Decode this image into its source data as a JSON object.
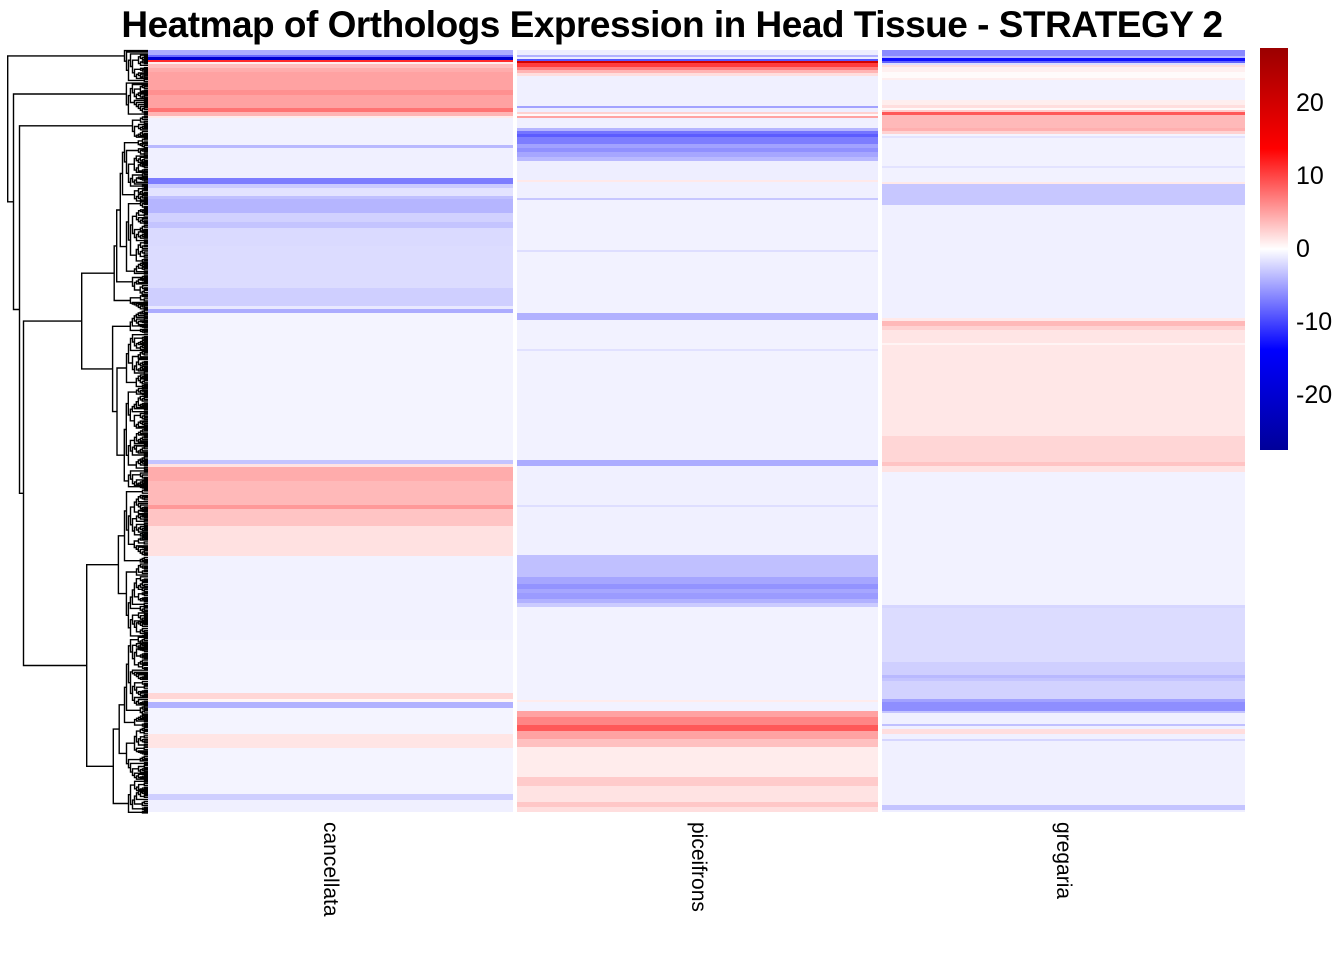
{
  "title": "Heatmap of Orthologs Expression in Head Tissue - STRATEGY 2",
  "chart_data": {
    "type": "heatmap",
    "title": "Heatmap of Orthologs Expression in Head Tissue - STRATEGY 2",
    "columns": [
      "cancellata",
      "piceifrons",
      "gregaria"
    ],
    "row_dendrogram": true,
    "legend_position": "right",
    "value_domain": [
      -27.5,
      27.5
    ],
    "colorbar_ticks": [
      20,
      10,
      0,
      -10,
      -20
    ],
    "colormap_stops": [
      "#9A0000",
      "#FF0000",
      "#FFFFFF",
      "#0000FF",
      "#00009A"
    ],
    "bands_format": "[row_band_height_px, expression_value]",
    "bands": {
      "cancellata": [
        [
          5,
          -4.5
        ],
        [
          2,
          -8
        ],
        [
          3,
          -20
        ],
        [
          2,
          11.5
        ],
        [
          2,
          1
        ],
        [
          4,
          3.5
        ],
        [
          4,
          4.5
        ],
        [
          18,
          5
        ],
        [
          5,
          6
        ],
        [
          13,
          5
        ],
        [
          4,
          7.5
        ],
        [
          4,
          4
        ],
        [
          2,
          1
        ],
        [
          27,
          -0.7
        ],
        [
          3,
          -3.8
        ],
        [
          30,
          -0.8
        ],
        [
          6,
          -7
        ],
        [
          4,
          -2.8
        ],
        [
          8,
          -1.5
        ],
        [
          3,
          -3.4
        ],
        [
          14,
          -4
        ],
        [
          9,
          -2.5
        ],
        [
          6,
          -3.2
        ],
        [
          18,
          -2
        ],
        [
          42,
          -1.9
        ],
        [
          18,
          -2.6
        ],
        [
          3,
          -1.2
        ],
        [
          4,
          -4.5
        ],
        [
          147,
          -0.6
        ],
        [
          4,
          -3.2
        ],
        [
          3,
          1.5
        ],
        [
          14,
          4.5
        ],
        [
          24,
          3.8
        ],
        [
          4,
          5.5
        ],
        [
          17,
          3.2
        ],
        [
          30,
          1.6
        ],
        [
          84,
          -0.7
        ],
        [
          53,
          -0.6
        ],
        [
          6,
          2.2
        ],
        [
          3,
          0.5
        ],
        [
          6,
          -4.2
        ],
        [
          26,
          -0.6
        ],
        [
          14,
          1.4
        ],
        [
          46,
          -0.6
        ],
        [
          6,
          -2.6
        ],
        [
          13,
          -0.8
        ]
      ],
      "piceifrons": [
        [
          5,
          -0.9
        ],
        [
          2,
          -4.2
        ],
        [
          2,
          -0.9
        ],
        [
          2,
          -9
        ],
        [
          2,
          20
        ],
        [
          4,
          10.5
        ],
        [
          3,
          7
        ],
        [
          3,
          4
        ],
        [
          3,
          1.8
        ],
        [
          30,
          -0.8
        ],
        [
          2,
          -5
        ],
        [
          4,
          -0.9
        ],
        [
          2,
          2.5
        ],
        [
          2,
          0.3
        ],
        [
          2,
          5
        ],
        [
          10,
          -0.8
        ],
        [
          3,
          -4
        ],
        [
          3,
          -7.5
        ],
        [
          3,
          -8.8
        ],
        [
          7,
          -7
        ],
        [
          4,
          -5
        ],
        [
          4,
          -6
        ],
        [
          5,
          -4.8
        ],
        [
          4,
          -3.8
        ],
        [
          19,
          -0.9
        ],
        [
          2,
          1.2
        ],
        [
          16,
          -0.8
        ],
        [
          2,
          -3
        ],
        [
          50,
          -0.7
        ],
        [
          2,
          -1.8
        ],
        [
          61,
          -0.7
        ],
        [
          7,
          -4.2
        ],
        [
          29,
          -0.7
        ],
        [
          2,
          -1.6
        ],
        [
          109,
          -0.7
        ],
        [
          6,
          -4.5
        ],
        [
          39,
          -0.8
        ],
        [
          2,
          -1.8
        ],
        [
          48,
          -0.8
        ],
        [
          22,
          -3.4
        ],
        [
          7,
          -4.8
        ],
        [
          6,
          -5.8
        ],
        [
          4,
          -4.8
        ],
        [
          6,
          -5.4
        ],
        [
          4,
          -4.2
        ],
        [
          4,
          -2.8
        ],
        [
          93,
          -0.7
        ],
        [
          2,
          1
        ],
        [
          9,
          -0.7
        ],
        [
          6,
          5
        ],
        [
          8,
          6.6
        ],
        [
          6,
          9
        ],
        [
          8,
          5
        ],
        [
          8,
          3.4
        ],
        [
          30,
          1
        ],
        [
          9,
          2.8
        ],
        [
          16,
          1.5
        ],
        [
          5,
          3
        ],
        [
          5,
          1.8
        ]
      ],
      "gregaria": [
        [
          6,
          -6.3
        ],
        [
          2,
          -4
        ],
        [
          3,
          -13
        ],
        [
          2,
          -8.5
        ],
        [
          2,
          -1.8
        ],
        [
          2,
          1.8
        ],
        [
          5,
          0.8
        ],
        [
          6,
          0.2
        ],
        [
          2,
          0.9
        ],
        [
          20,
          -0.7
        ],
        [
          5,
          0.9
        ],
        [
          3,
          1.8
        ],
        [
          2,
          0.3
        ],
        [
          2,
          2.8
        ],
        [
          3,
          9
        ],
        [
          13,
          3.8
        ],
        [
          3,
          4.3
        ],
        [
          3,
          2.4
        ],
        [
          2,
          -0.6
        ],
        [
          2,
          -1.5
        ],
        [
          28,
          -0.7
        ],
        [
          2,
          -1.5
        ],
        [
          14,
          -0.7
        ],
        [
          2,
          1.2
        ],
        [
          21,
          -3
        ],
        [
          113,
          -0.8
        ],
        [
          3,
          1.2
        ],
        [
          5,
          3.8
        ],
        [
          4,
          2.4
        ],
        [
          13,
          1.4
        ],
        [
          2,
          0.6
        ],
        [
          91,
          1.3
        ],
        [
          26,
          2.2
        ],
        [
          4,
          3.2
        ],
        [
          6,
          1.5
        ],
        [
          133,
          -0.7
        ],
        [
          3,
          -2.2
        ],
        [
          54,
          -1.9
        ],
        [
          13,
          -2.6
        ],
        [
          3,
          -3.8
        ],
        [
          4,
          -3.2
        ],
        [
          18,
          -2.4
        ],
        [
          3,
          -5
        ],
        [
          9,
          -6.1
        ],
        [
          2,
          -3.2
        ],
        [
          11,
          -0.8
        ],
        [
          2,
          -3.4
        ],
        [
          3,
          -0.8
        ],
        [
          5,
          1.8
        ],
        [
          5,
          -0.8
        ],
        [
          2,
          -2.2
        ],
        [
          64,
          -0.8
        ],
        [
          5,
          -3.2
        ],
        [
          2,
          -0.9
        ]
      ]
    }
  }
}
